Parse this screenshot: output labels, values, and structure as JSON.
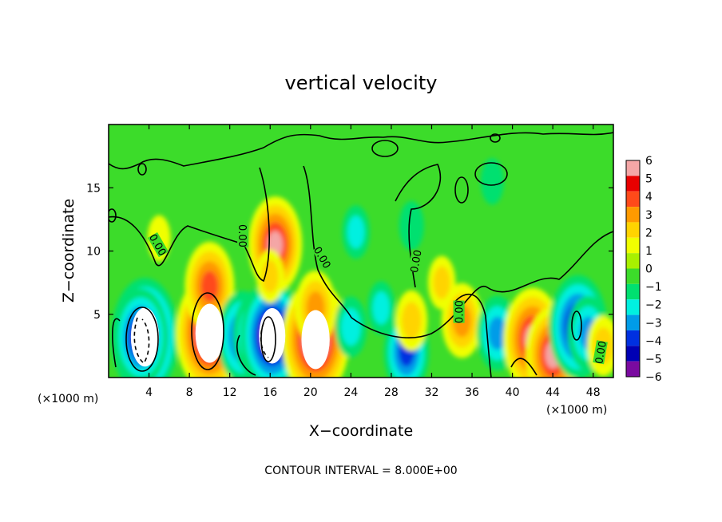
{
  "chart_data": {
    "type": "heatmap",
    "title": "vertical velocity",
    "xlabel": "X−coordinate",
    "ylabel": "Z−coordinate",
    "x_unit": "(×1000 m)",
    "x_unit_right": "(×1000 m)",
    "xlim": [
      0,
      50
    ],
    "ylim": [
      0,
      20
    ],
    "x_ticks": [
      "4",
      "8",
      "12",
      "16",
      "20",
      "24",
      "28",
      "32",
      "36",
      "40",
      "44",
      "48"
    ],
    "x_tick_values": [
      4,
      8,
      12,
      16,
      20,
      24,
      28,
      32,
      36,
      40,
      44,
      48
    ],
    "y_ticks": [
      "5",
      "10",
      "15"
    ],
    "y_tick_values": [
      5,
      10,
      15
    ],
    "colorbar": {
      "range": [
        -6,
        6
      ],
      "labels": [
        "6",
        "5",
        "4",
        "3",
        "2",
        "1",
        "0",
        "−1",
        "−2",
        "−3",
        "−4",
        "−5",
        "−6"
      ],
      "colors": [
        "#f4a6a6",
        "#e80000",
        "#ff4a1a",
        "#ff9a00",
        "#ffd400",
        "#f0ff00",
        "#a8f000",
        "#3cdc2a",
        "#00e070",
        "#00f0e0",
        "#009ce8",
        "#0030e0",
        "#0000b4",
        "#7a0aa0"
      ]
    },
    "contour_labels": [
      "0.00",
      "0.00",
      "0.00",
      "0.00",
      "0.00",
      "0.00"
    ],
    "contour_interval_text": "CONTOUR INTERVAL = 8.000E+00",
    "features": [
      {
        "x": 3.6,
        "z": 3.2,
        "w": -6.0
      },
      {
        "x": 3.2,
        "z": 3.2,
        "w": -4.5
      },
      {
        "x": 10.0,
        "z": 3.5,
        "w": 6.0
      },
      {
        "x": 10.0,
        "z": 7.2,
        "w": 4.0
      },
      {
        "x": 13.3,
        "z": 3.2,
        "w": -4.2
      },
      {
        "x": 14.8,
        "z": 3.4,
        "w": -4.0
      },
      {
        "x": 16.2,
        "z": 3.3,
        "w": -5.5
      },
      {
        "x": 16.5,
        "z": 10.5,
        "w": 4.5
      },
      {
        "x": 16.0,
        "z": 8.0,
        "w": 1.5
      },
      {
        "x": 20.5,
        "z": 3.0,
        "w": 6.0
      },
      {
        "x": 20.5,
        "z": 5.5,
        "w": 3.0
      },
      {
        "x": 24.0,
        "z": 4.0,
        "w": -2.0
      },
      {
        "x": 29.5,
        "z": 2.0,
        "w": -3.5
      },
      {
        "x": 27.0,
        "z": 5.5,
        "w": -1.5
      },
      {
        "x": 24.5,
        "z": 11.5,
        "w": -1.5
      },
      {
        "x": 33.0,
        "z": 7.5,
        "w": 1.5
      },
      {
        "x": 30.0,
        "z": 4.5,
        "w": 2.0
      },
      {
        "x": 35.0,
        "z": 4.5,
        "w": 3.0
      },
      {
        "x": 38.5,
        "z": 3.5,
        "w": -3.0
      },
      {
        "x": 42.0,
        "z": 3.0,
        "w": 5.0
      },
      {
        "x": 44.0,
        "z": 1.8,
        "w": 4.5
      },
      {
        "x": 46.5,
        "z": 4.0,
        "w": -5.0
      },
      {
        "x": 47.5,
        "z": 3.5,
        "w": -3.0
      },
      {
        "x": 49.0,
        "z": 2.5,
        "w": 2.0
      },
      {
        "x": 5.0,
        "z": 11.0,
        "w": 1.0
      },
      {
        "x": 30.0,
        "z": 12.0,
        "w": -1.2
      },
      {
        "x": 38.0,
        "z": 15.5,
        "w": -1.0
      }
    ]
  }
}
